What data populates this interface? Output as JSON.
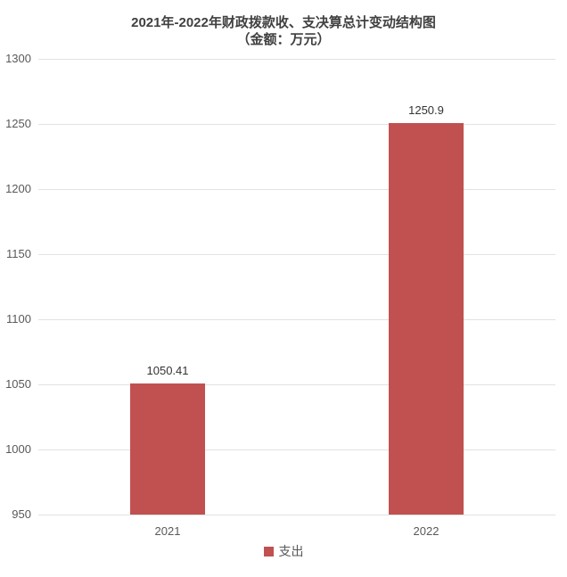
{
  "title": {
    "line1": "2021年-2022年财政拨款收、支决算总计变动结构图",
    "line2": "（金额：万元）",
    "color": "#404040"
  },
  "chart_data": {
    "type": "bar",
    "categories": [
      "2021",
      "2022"
    ],
    "series": [
      {
        "name": "支出",
        "values": [
          1050.41,
          1250.9
        ],
        "color": "#c05150"
      }
    ],
    "value_labels": [
      "1050.41",
      "1250.9"
    ],
    "title": "2021年-2022年财政拨款收、支决算总计变动结构图（金额：万元）",
    "xlabel": "",
    "ylabel": "",
    "ylim": [
      950,
      1300
    ],
    "yticks": [
      950,
      1000,
      1050,
      1100,
      1150,
      1200,
      1250,
      1300
    ],
    "grid": true,
    "legend_position": "bottom",
    "colors": {
      "bar": "#c05150",
      "gridline": "#e2e2e2",
      "axis_label": "#595959",
      "value_label": "#333333"
    }
  },
  "legend": {
    "items": [
      {
        "label": "支出",
        "color": "#c05150"
      }
    ]
  }
}
